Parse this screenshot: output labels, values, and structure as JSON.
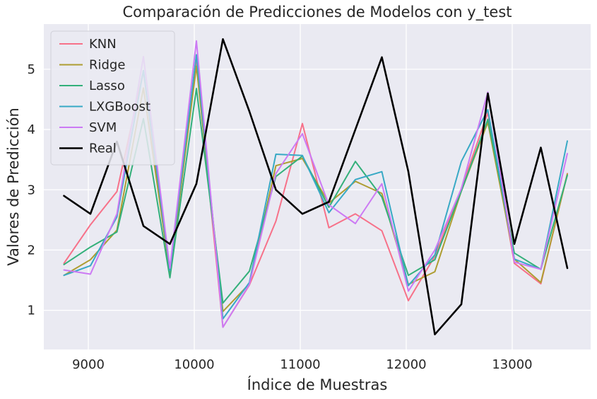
{
  "chart_data": {
    "type": "line",
    "title": "Comparación de Predicciones de Modelos con y_test",
    "xlabel": "Índice de Muestras",
    "ylabel": "Valores de Predicción",
    "xlim": [
      8580,
      13740
    ],
    "ylim": [
      0.35,
      5.75
    ],
    "xticks": [
      9000,
      10000,
      11000,
      12000,
      13000
    ],
    "yticks": [
      1,
      2,
      3,
      4,
      5
    ],
    "grid": true,
    "legend_position": "top-left",
    "x": [
      8770,
      9020,
      9270,
      9520,
      9770,
      10020,
      10270,
      10520,
      10770,
      11020,
      11270,
      11520,
      11770,
      12020,
      12270,
      12520,
      12770,
      13020,
      13270,
      13520
    ],
    "series": [
      {
        "name": "KNN",
        "color": "#f77189",
        "width": 2,
        "values": [
          1.78,
          2.42,
          2.97,
          4.97,
          1.55,
          5.13,
          0.72,
          1.42,
          2.48,
          4.1,
          2.37,
          2.6,
          2.32,
          1.16,
          1.9,
          3.02,
          4.28,
          1.78,
          1.44,
          3.27
        ]
      },
      {
        "name": "Ridge",
        "color": "#ae9d31",
        "width": 2,
        "values": [
          1.58,
          1.84,
          2.33,
          4.69,
          1.62,
          5.05,
          0.98,
          1.44,
          3.4,
          3.52,
          2.78,
          3.14,
          2.94,
          1.43,
          1.64,
          2.98,
          4.12,
          1.85,
          1.46,
          3.26
        ]
      },
      {
        "name": "Lasso",
        "color": "#33b07a",
        "width": 2,
        "values": [
          1.76,
          2.05,
          2.3,
          4.18,
          1.54,
          4.68,
          1.12,
          1.65,
          3.22,
          3.56,
          2.71,
          3.47,
          2.88,
          1.58,
          1.84,
          2.98,
          4.17,
          1.95,
          1.68,
          3.24
        ]
      },
      {
        "name": "LXGBoost",
        "color": "#38a9c5",
        "width": 2,
        "values": [
          1.58,
          1.74,
          2.55,
          4.98,
          1.66,
          5.24,
          0.86,
          1.46,
          3.59,
          3.57,
          2.62,
          3.17,
          3.3,
          1.41,
          1.92,
          3.47,
          4.33,
          1.85,
          1.68,
          3.81
        ]
      },
      {
        "name": "SVM",
        "color": "#cc7af4",
        "width": 2,
        "values": [
          1.67,
          1.6,
          2.6,
          5.21,
          1.7,
          5.47,
          0.72,
          1.43,
          3.27,
          3.93,
          2.75,
          2.44,
          3.1,
          1.32,
          2.0,
          3.02,
          4.62,
          1.8,
          1.68,
          3.6
        ]
      },
      {
        "name": "Real",
        "color": "#000000",
        "width": 2.6,
        "values": [
          2.9,
          2.6,
          3.8,
          2.4,
          2.1,
          3.1,
          5.5,
          4.3,
          3.0,
          2.6,
          2.8,
          4.0,
          5.2,
          3.3,
          0.6,
          1.1,
          4.6,
          2.1,
          3.7,
          1.7
        ]
      }
    ]
  }
}
